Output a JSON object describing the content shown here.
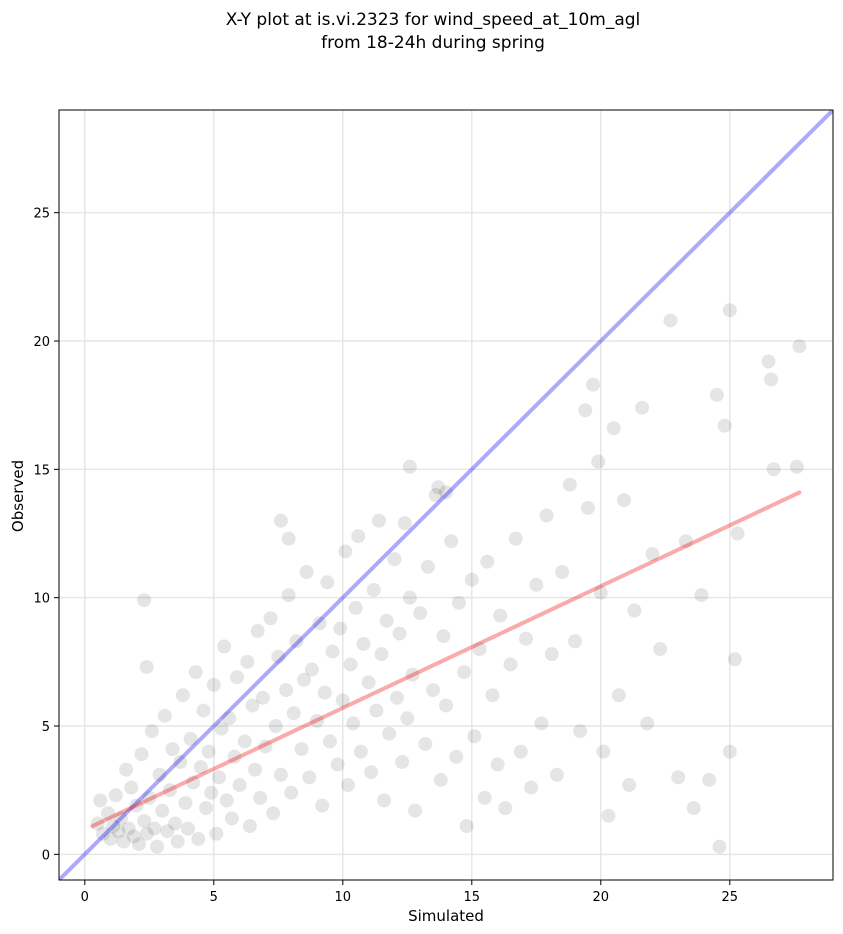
{
  "chart_data": {
    "type": "scatter",
    "title_line1": "X-Y plot at is.vi.2323 for wind_speed_at_10m_agl",
    "title_line2": "from 18-24h during spring",
    "xlabel": "Simulated",
    "ylabel": "Observed",
    "xlim": [
      -1,
      29
    ],
    "ylim": [
      -1,
      29
    ],
    "xticks": [
      0,
      5,
      10,
      15,
      20,
      25
    ],
    "yticks": [
      0,
      5,
      10,
      15,
      20,
      25
    ],
    "xtick_labels": [
      "0",
      "5",
      "10",
      "15",
      "20",
      "25"
    ],
    "ytick_labels": [
      "0",
      "5",
      "10",
      "15",
      "20",
      "25"
    ],
    "grid": true,
    "point_color": "#000000",
    "point_opacity": 0.1,
    "identity_line": {
      "x": [
        -1,
        29
      ],
      "y": [
        -1,
        29
      ],
      "color": "#0000ee"
    },
    "regression_line": {
      "x": [
        0.3,
        27.7
      ],
      "y": [
        1.1,
        14.1
      ],
      "color": "#ee0000"
    },
    "points": [
      [
        0.5,
        1.2
      ],
      [
        0.6,
        2.1
      ],
      [
        0.7,
        0.8
      ],
      [
        0.9,
        1.6
      ],
      [
        1.0,
        0.6
      ],
      [
        1.1,
        1.1
      ],
      [
        1.2,
        2.3
      ],
      [
        1.3,
        0.9
      ],
      [
        1.4,
        1.4
      ],
      [
        1.5,
        0.5
      ],
      [
        1.6,
        3.3
      ],
      [
        1.7,
        1.0
      ],
      [
        1.8,
        2.6
      ],
      [
        1.9,
        0.7
      ],
      [
        2.0,
        1.9
      ],
      [
        2.1,
        0.4
      ],
      [
        2.2,
        3.9
      ],
      [
        2.3,
        1.3
      ],
      [
        2.4,
        0.8
      ],
      [
        2.5,
        2.2
      ],
      [
        2.6,
        4.8
      ],
      [
        2.7,
        1.0
      ],
      [
        2.8,
        0.3
      ],
      [
        2.9,
        3.1
      ],
      [
        3.0,
        1.7
      ],
      [
        3.1,
        5.4
      ],
      [
        3.2,
        0.9
      ],
      [
        3.3,
        2.5
      ],
      [
        3.4,
        4.1
      ],
      [
        3.5,
        1.2
      ],
      [
        3.6,
        0.5
      ],
      [
        3.7,
        3.6
      ],
      [
        3.8,
        6.2
      ],
      [
        3.9,
        2.0
      ],
      [
        4.0,
        1.0
      ],
      [
        4.1,
        4.5
      ],
      [
        4.2,
        2.8
      ],
      [
        4.3,
        7.1
      ],
      [
        4.4,
        0.6
      ],
      [
        4.5,
        3.4
      ],
      [
        4.6,
        5.6
      ],
      [
        4.7,
        1.8
      ],
      [
        4.8,
        4.0
      ],
      [
        4.9,
        2.4
      ],
      [
        5.0,
        6.6
      ],
      [
        5.1,
        0.8
      ],
      [
        5.2,
        3.0
      ],
      [
        5.3,
        4.9
      ],
      [
        5.4,
        8.1
      ],
      [
        5.5,
        2.1
      ],
      [
        5.6,
        5.3
      ],
      [
        5.7,
        1.4
      ],
      [
        5.8,
        3.8
      ],
      [
        5.9,
        6.9
      ],
      [
        6.0,
        2.7
      ],
      [
        6.2,
        4.4
      ],
      [
        6.3,
        7.5
      ],
      [
        6.4,
        1.1
      ],
      [
        6.5,
        5.8
      ],
      [
        6.6,
        3.3
      ],
      [
        6.7,
        8.7
      ],
      [
        6.8,
        2.2
      ],
      [
        6.9,
        6.1
      ],
      [
        7.0,
        4.2
      ],
      [
        7.2,
        9.2
      ],
      [
        7.3,
        1.6
      ],
      [
        7.4,
        5.0
      ],
      [
        7.5,
        7.7
      ],
      [
        7.6,
        3.1
      ],
      [
        7.8,
        6.4
      ],
      [
        7.9,
        10.1
      ],
      [
        8.0,
        2.4
      ],
      [
        8.1,
        5.5
      ],
      [
        8.2,
        8.3
      ],
      [
        8.4,
        4.1
      ],
      [
        8.5,
        6.8
      ],
      [
        8.6,
        11.0
      ],
      [
        8.7,
        3.0
      ],
      [
        8.8,
        7.2
      ],
      [
        9.0,
        5.2
      ],
      [
        9.1,
        9.0
      ],
      [
        9.2,
        1.9
      ],
      [
        9.3,
        6.3
      ],
      [
        9.4,
        10.6
      ],
      [
        9.5,
        4.4
      ],
      [
        9.6,
        7.9
      ],
      [
        9.8,
        3.5
      ],
      [
        9.9,
        8.8
      ],
      [
        10.0,
        6.0
      ],
      [
        10.1,
        11.8
      ],
      [
        10.2,
        2.7
      ],
      [
        10.3,
        7.4
      ],
      [
        10.4,
        5.1
      ],
      [
        10.5,
        9.6
      ],
      [
        10.6,
        12.4
      ],
      [
        10.7,
        4.0
      ],
      [
        10.8,
        8.2
      ],
      [
        11.0,
        6.7
      ],
      [
        11.1,
        3.2
      ],
      [
        11.2,
        10.3
      ],
      [
        11.3,
        5.6
      ],
      [
        11.4,
        13.0
      ],
      [
        11.5,
        7.8
      ],
      [
        11.6,
        2.1
      ],
      [
        11.7,
        9.1
      ],
      [
        11.8,
        4.7
      ],
      [
        12.0,
        11.5
      ],
      [
        12.1,
        6.1
      ],
      [
        12.2,
        8.6
      ],
      [
        12.3,
        3.6
      ],
      [
        12.4,
        12.9
      ],
      [
        12.5,
        5.3
      ],
      [
        12.6,
        10.0
      ],
      [
        12.7,
        7.0
      ],
      [
        12.8,
        1.7
      ],
      [
        13.0,
        9.4
      ],
      [
        13.2,
        4.3
      ],
      [
        13.3,
        11.2
      ],
      [
        13.5,
        6.4
      ],
      [
        13.6,
        14.0
      ],
      [
        13.8,
        2.9
      ],
      [
        13.9,
        8.5
      ],
      [
        14.0,
        5.8
      ],
      [
        14.2,
        12.2
      ],
      [
        14.4,
        3.8
      ],
      [
        14.5,
        9.8
      ],
      [
        14.7,
        7.1
      ],
      [
        14.8,
        1.1
      ],
      [
        15.0,
        10.7
      ],
      [
        15.1,
        4.6
      ],
      [
        15.3,
        8.0
      ],
      [
        15.5,
        2.2
      ],
      [
        15.6,
        11.4
      ],
      [
        15.8,
        6.2
      ],
      [
        16.0,
        3.5
      ],
      [
        16.1,
        9.3
      ],
      [
        16.3,
        1.8
      ],
      [
        16.5,
        7.4
      ],
      [
        16.7,
        12.3
      ],
      [
        16.9,
        4.0
      ],
      [
        17.1,
        8.4
      ],
      [
        17.3,
        2.6
      ],
      [
        17.5,
        10.5
      ],
      [
        17.7,
        5.1
      ],
      [
        17.9,
        13.2
      ],
      [
        18.1,
        7.8
      ],
      [
        18.3,
        3.1
      ],
      [
        18.5,
        11.0
      ],
      [
        18.8,
        14.4
      ],
      [
        19.0,
        8.3
      ],
      [
        19.2,
        4.8
      ],
      [
        19.4,
        17.3
      ],
      [
        19.5,
        13.5
      ],
      [
        19.7,
        18.3
      ],
      [
        19.9,
        15.3
      ],
      [
        20.0,
        10.2
      ],
      [
        20.1,
        4.0
      ],
      [
        20.3,
        1.5
      ],
      [
        20.5,
        16.6
      ],
      [
        20.7,
        6.2
      ],
      [
        20.9,
        13.8
      ],
      [
        21.1,
        2.7
      ],
      [
        21.3,
        9.5
      ],
      [
        21.6,
        17.4
      ],
      [
        21.8,
        5.1
      ],
      [
        22.0,
        11.7
      ],
      [
        22.3,
        8.0
      ],
      [
        22.7,
        20.8
      ],
      [
        23.0,
        3.0
      ],
      [
        23.3,
        12.2
      ],
      [
        23.6,
        1.8
      ],
      [
        23.9,
        10.1
      ],
      [
        24.2,
        2.9
      ],
      [
        24.5,
        17.9
      ],
      [
        24.8,
        16.7
      ],
      [
        25.0,
        21.2
      ],
      [
        25.2,
        7.6
      ],
      [
        24.6,
        0.3
      ],
      [
        25.0,
        4.0
      ],
      [
        25.3,
        12.5
      ],
      [
        26.5,
        19.2
      ],
      [
        26.6,
        18.5
      ],
      [
        26.7,
        15.0
      ],
      [
        27.6,
        15.1
      ],
      [
        27.7,
        19.8
      ],
      [
        2.3,
        9.9
      ],
      [
        2.4,
        7.3
      ],
      [
        7.6,
        13.0
      ],
      [
        7.9,
        12.3
      ],
      [
        12.6,
        15.1
      ],
      [
        13.7,
        14.3
      ],
      [
        14.0,
        14.1
      ]
    ]
  }
}
